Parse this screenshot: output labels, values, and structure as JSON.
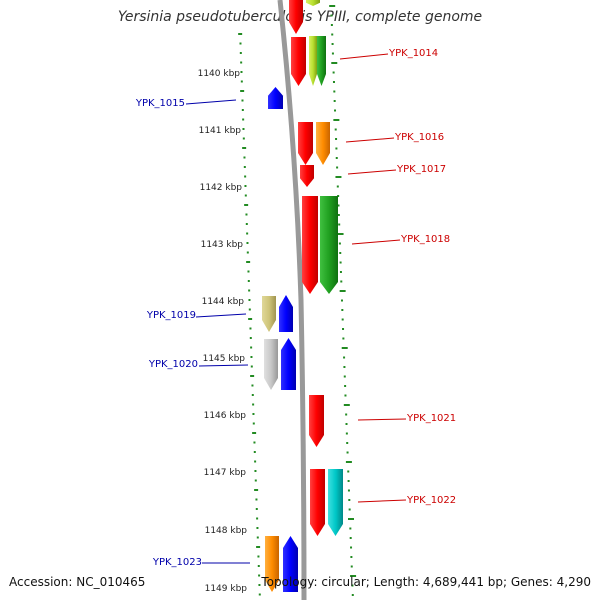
{
  "title": "Yersinia pseudotuberculosis YPIII, complete genome",
  "footer": {
    "accession": "Accession: NC_010465",
    "summary": "Topology: circular; Length: 4,689,441 bp; Genes: 4,290"
  },
  "axis": {
    "ticks": [
      "1140 kbp",
      "1141 kbp",
      "1142 kbp",
      "1143 kbp",
      "1144 kbp",
      "1145 kbp",
      "1146 kbp",
      "1147 kbp",
      "1148 kbp",
      "1149 kbp"
    ]
  },
  "colors": {
    "reverse_label": "#cc0000",
    "forward_label": "#0000aa",
    "backbone": "#999999",
    "scale_dots": "#228b22"
  },
  "genes": [
    {
      "name": "YPK_1014",
      "strand": "reverse",
      "label_color": "#cc0000"
    },
    {
      "name": "YPK_1015",
      "strand": "forward",
      "label_color": "#0000aa"
    },
    {
      "name": "YPK_1016",
      "strand": "reverse",
      "label_color": "#cc0000"
    },
    {
      "name": "YPK_1017",
      "strand": "reverse",
      "label_color": "#cc0000"
    },
    {
      "name": "YPK_1018",
      "strand": "reverse",
      "label_color": "#cc0000"
    },
    {
      "name": "YPK_1019",
      "strand": "forward",
      "label_color": "#0000aa"
    },
    {
      "name": "YPK_1020",
      "strand": "forward",
      "label_color": "#0000aa"
    },
    {
      "name": "YPK_1021",
      "strand": "reverse",
      "label_color": "#cc0000"
    },
    {
      "name": "YPK_1022",
      "strand": "reverse",
      "label_color": "#cc0000"
    },
    {
      "name": "YPK_1023",
      "strand": "forward",
      "label_color": "#0000aa"
    }
  ]
}
